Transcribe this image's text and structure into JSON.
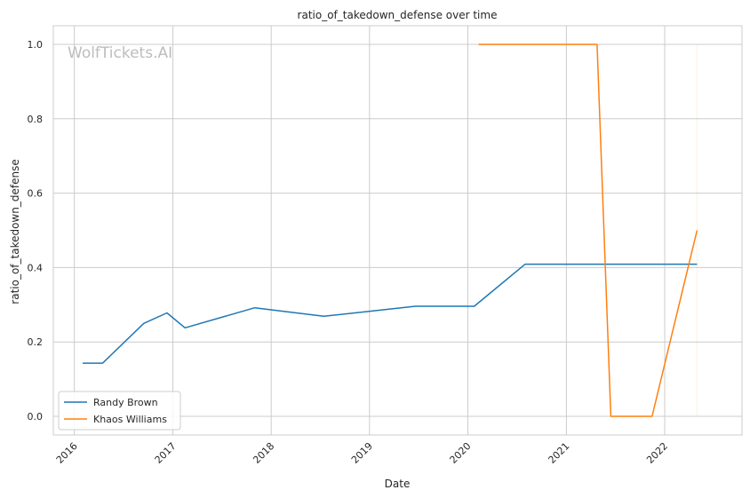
{
  "chart_data": {
    "type": "line",
    "title": "ratio_of_takedown_defense over time",
    "xlabel": "Date",
    "ylabel": "ratio_of_takedown_defense",
    "watermark": "WolfTickets.AI",
    "xlim": [
      "2015-10-15",
      "2022-10-15"
    ],
    "ylim": [
      -0.05,
      1.05
    ],
    "x_ticks": [
      {
        "date": "2016-01-01",
        "label": "2016"
      },
      {
        "date": "2017-01-01",
        "label": "2017"
      },
      {
        "date": "2018-01-01",
        "label": "2018"
      },
      {
        "date": "2019-01-01",
        "label": "2019"
      },
      {
        "date": "2020-01-01",
        "label": "2020"
      },
      {
        "date": "2021-01-01",
        "label": "2021"
      },
      {
        "date": "2022-01-01",
        "label": "2022"
      }
    ],
    "y_ticks": [
      {
        "value": 0.0,
        "label": "0.0"
      },
      {
        "value": 0.2,
        "label": "0.2"
      },
      {
        "value": 0.4,
        "label": "0.4"
      },
      {
        "value": 0.6,
        "label": "0.6"
      },
      {
        "value": 0.8,
        "label": "0.8"
      },
      {
        "value": 1.0,
        "label": "1.0"
      }
    ],
    "grid": true,
    "legend_position": "lower-left",
    "series": [
      {
        "name": "Randy Brown",
        "color": "#1f77b4",
        "points": [
          {
            "x": "2016-02-01",
            "y": 0.143
          },
          {
            "x": "2016-04-15",
            "y": 0.143
          },
          {
            "x": "2016-09-15",
            "y": 0.25
          },
          {
            "x": "2016-12-10",
            "y": 0.278
          },
          {
            "x": "2017-02-15",
            "y": 0.238
          },
          {
            "x": "2017-11-01",
            "y": 0.292
          },
          {
            "x": "2018-07-15",
            "y": 0.269
          },
          {
            "x": "2019-06-20",
            "y": 0.296
          },
          {
            "x": "2020-01-25",
            "y": 0.296
          },
          {
            "x": "2020-08-01",
            "y": 0.409
          },
          {
            "x": "2022-05-01",
            "y": 0.409
          }
        ]
      },
      {
        "name": "Khaos Williams",
        "color": "#ff7f0e",
        "points": [
          {
            "x": "2020-02-10",
            "y": 1.0
          },
          {
            "x": "2021-04-25",
            "y": 1.0
          },
          {
            "x": "2021-06-15",
            "y": 0.0
          },
          {
            "x": "2021-11-15",
            "y": 0.0
          },
          {
            "x": "2022-05-01",
            "y": 0.5
          }
        ]
      }
    ]
  }
}
